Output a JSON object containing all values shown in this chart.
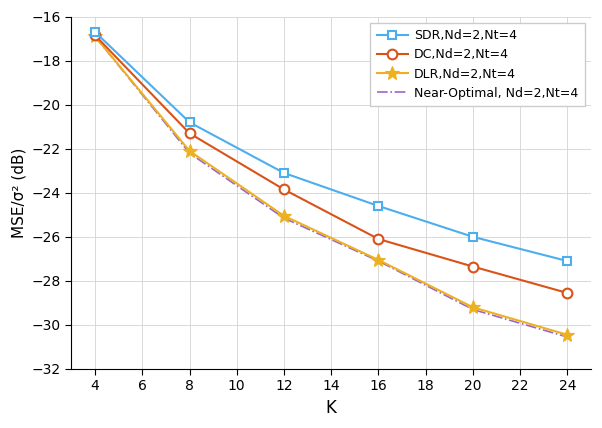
{
  "K": [
    4,
    8,
    12,
    16,
    20,
    24
  ],
  "SDR": [
    -16.7,
    -20.8,
    -23.1,
    -24.6,
    -26.0,
    -27.1
  ],
  "DC": [
    -16.85,
    -21.3,
    -23.85,
    -26.1,
    -27.35,
    -28.55
  ],
  "DLR": [
    -16.9,
    -22.1,
    -25.05,
    -27.05,
    -29.2,
    -30.45
  ],
  "NearOptimal": [
    -16.9,
    -22.2,
    -25.15,
    -27.1,
    -29.3,
    -30.55
  ],
  "SDR_color": "#4DAEEE",
  "DC_color": "#D95319",
  "DLR_color": "#EDB120",
  "NearOptimal_color": "#9966CC",
  "xlabel": "K",
  "ylabel": "MSE/σ² (dB)",
  "xlim": [
    3,
    25
  ],
  "ylim": [
    -32,
    -16
  ],
  "xticks": [
    4,
    6,
    8,
    10,
    12,
    14,
    16,
    18,
    20,
    22,
    24
  ],
  "yticks": [
    -32,
    -30,
    -28,
    -26,
    -24,
    -22,
    -20,
    -18,
    -16
  ],
  "legend_SDR": "SDR,Nd=2,Nt=4",
  "legend_DC": "DC,Nd=2,Nt=4",
  "legend_DLR": "DLR,Nd=2,Nt=4",
  "legend_NearOptimal": "Near-Optimal, Nd=2,Nt=4"
}
